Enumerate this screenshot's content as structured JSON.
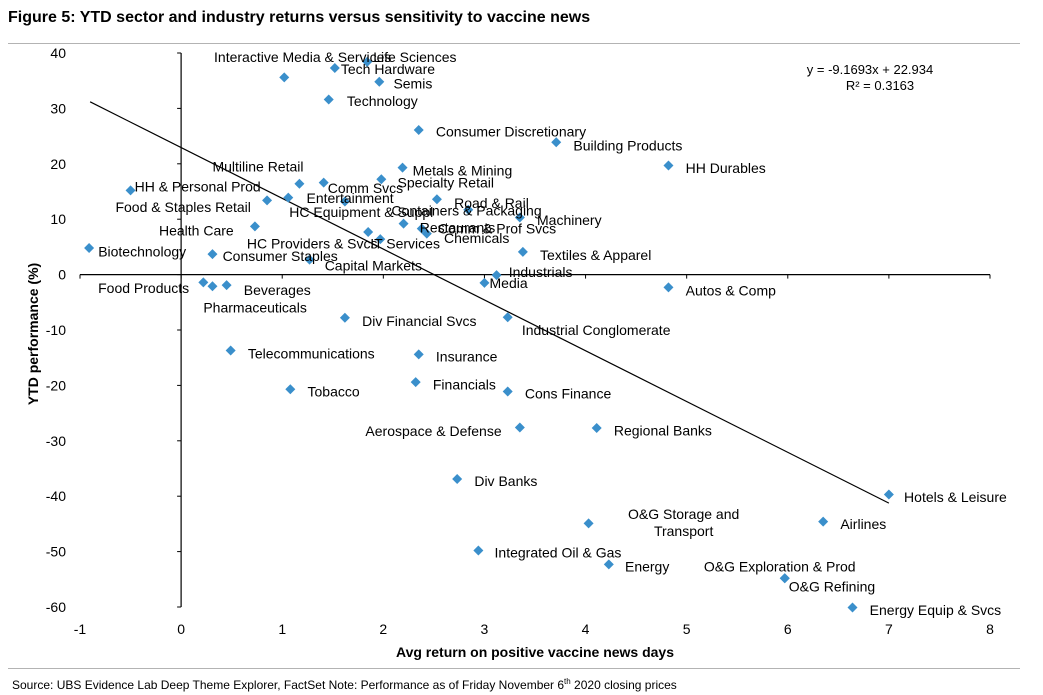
{
  "title": "Figure 5: YTD sector and industry returns versus sensitivity to vaccine news",
  "source": {
    "prefix": "Source:  UBS Evidence Lab Deep Theme Explorer, FactSet Note: Performance as of Friday November 6",
    "sup": "th",
    "suffix": " 2020 closing prices"
  },
  "chart_data": {
    "type": "scatter",
    "xlabel": "Avg return on positive vaccine news days",
    "ylabel": "YTD performance (%)",
    "xlim": [
      -1,
      8
    ],
    "ylim": [
      -60,
      40
    ],
    "xticks": [
      -1,
      0,
      1,
      2,
      3,
      4,
      5,
      6,
      7,
      8
    ],
    "yticks": [
      40,
      30,
      20,
      10,
      0,
      -10,
      -20,
      -30,
      -40,
      -50,
      -60
    ],
    "grid": false,
    "marker_color": "#3a8fcb",
    "trendline": {
      "equation": "y = -9.1693x + 22.934",
      "r2": "R² = 0.3163",
      "x_range": [
        -0.9,
        7.0
      ],
      "slope": -9.1693,
      "intercept": 22.934
    },
    "points": [
      {
        "name": "Life Sciences",
        "x": 1.84,
        "y": 38.4,
        "lx": 0.06,
        "ly": 39.3
      },
      {
        "name": "Interactive Media & Services",
        "x": 1.02,
        "y": 35.6,
        "lx": 1.06,
        "ly": 39.3,
        "anchor": "end"
      },
      {
        "name": "Tech Hardware",
        "x": 1.52,
        "y": 37.3,
        "lx": 0.06,
        "ly": 37.1
      },
      {
        "name": "Semis",
        "x": 1.96,
        "y": 34.8,
        "lx": 0.14,
        "ly": 34.5
      },
      {
        "name": "Technology",
        "x": 1.46,
        "y": 31.6,
        "lx": 0.18,
        "ly": 31.3
      },
      {
        "name": "Consumer Discretionary",
        "x": 2.35,
        "y": 26.1,
        "lx": 0.17,
        "ly": 25.8
      },
      {
        "name": "Building Products",
        "x": 3.71,
        "y": 23.9,
        "lx": 0.17,
        "ly": 23.3
      },
      {
        "name": "HH Durables",
        "x": 4.82,
        "y": 19.7,
        "lx": 0.17,
        "ly": 19.2
      },
      {
        "name": "Multiline Retail",
        "x": 1.17,
        "y": 16.4,
        "lx": -0.86,
        "ly": 19.5
      },
      {
        "name": "Metals & Mining",
        "x": 2.19,
        "y": 19.3,
        "lx": 0.1,
        "ly": 18.8
      },
      {
        "name": "HH & Personal Prod",
        "x": -0.5,
        "y": 15.2,
        "lx": 0.04,
        "ly": 15.9
      },
      {
        "name": "Comm Svcs",
        "x": 1.41,
        "y": 16.6,
        "lx": 0.04,
        "ly": 15.6
      },
      {
        "name": "Specialty Retail",
        "x": 1.98,
        "y": 17.2,
        "lx": 0.16,
        "ly": 16.6
      },
      {
        "name": "Entertainment",
        "x": 1.62,
        "y": 13.2,
        "lx": -0.38,
        "ly": 13.8
      },
      {
        "name": "Food & Staples Retail",
        "x": 0.85,
        "y": 13.4,
        "lx": -0.16,
        "ly": 12.2,
        "anchor": "end"
      },
      {
        "name": "HC Equipment & Suppl",
        "x": 1.06,
        "y": 13.9,
        "lx": 0.01,
        "ly": 11.3
      },
      {
        "name": "Road & Rail",
        "x": 2.53,
        "y": 13.6,
        "lx": 0.17,
        "ly": 12.9
      },
      {
        "name": "Containers & Packaging",
        "x": 2.84,
        "y": 11.7,
        "lx": -0.76,
        "ly": 11.6
      },
      {
        "name": "Machinery",
        "x": 3.35,
        "y": 10.3,
        "lx": 0.17,
        "ly": 9.9
      },
      {
        "name": "Restaurants",
        "x": 2.2,
        "y": 9.2,
        "lx": 0.16,
        "ly": 8.5
      },
      {
        "name": "Comm & Prof Svcs",
        "x": 2.38,
        "y": 8.3,
        "lx": 0.16,
        "ly": 8.3
      },
      {
        "name": "Chemicals",
        "x": 2.43,
        "y": 7.4,
        "lx": 0.17,
        "ly": 6.6
      },
      {
        "name": "Health Care",
        "x": 0.73,
        "y": 8.7,
        "lx": -0.21,
        "ly": 8.0,
        "anchor": "end"
      },
      {
        "name": "HC Providers & Svcs",
        "x": 1.85,
        "y": 7.7,
        "lx": -1.2,
        "ly": 5.6
      },
      {
        "name": "IT Services",
        "x": 1.97,
        "y": 6.4,
        "lx": -0.1,
        "ly": 5.6
      },
      {
        "name": "Biotechnology",
        "x": -0.91,
        "y": 4.8,
        "lx": 0.09,
        "ly": 4.2
      },
      {
        "name": "Consumer Staples",
        "x": 0.31,
        "y": 3.7,
        "lx": 0.1,
        "ly": 3.4
      },
      {
        "name": "Textiles & Apparel",
        "x": 3.38,
        "y": 4.1,
        "lx": 0.17,
        "ly": 3.5
      },
      {
        "name": "Capital Markets",
        "x": 1.27,
        "y": 2.7,
        "lx": 0.15,
        "ly": 1.6
      },
      {
        "name": "Industrials",
        "x": 3.12,
        "y": -0.1,
        "lx": 0.12,
        "ly": 0.5
      },
      {
        "name": "Media",
        "x": 3.0,
        "y": -1.5,
        "lx": 0.05,
        "ly": -1.5
      },
      {
        "name": "Food Products",
        "x": 0.22,
        "y": -1.4,
        "lx": -0.14,
        "ly": -2.4,
        "anchor": "end"
      },
      {
        "name": "Beverages",
        "x": 0.45,
        "y": -1.9,
        "lx": 0.17,
        "ly": -2.8
      },
      {
        "name": "Pharmaceuticals",
        "x": 0.31,
        "y": -2.1,
        "lx": -0.09,
        "ly": -5.9
      },
      {
        "name": "Autos & Comp",
        "x": 4.82,
        "y": -2.3,
        "lx": 0.17,
        "ly": -2.9
      },
      {
        "name": "Div Financial Svcs",
        "x": 1.62,
        "y": -7.8,
        "lx": 0.17,
        "ly": -8.4
      },
      {
        "name": "Industrial Conglomerate",
        "x": 3.23,
        "y": -7.7,
        "lx": 0.14,
        "ly": -10.0
      },
      {
        "name": "Telecommunications",
        "x": 0.49,
        "y": -13.7,
        "lx": 0.17,
        "ly": -14.2
      },
      {
        "name": "Insurance",
        "x": 2.35,
        "y": -14.4,
        "lx": 0.17,
        "ly": -14.8
      },
      {
        "name": "Financials",
        "x": 2.32,
        "y": -19.4,
        "lx": 0.17,
        "ly": -19.8
      },
      {
        "name": "Cons Finance",
        "x": 3.23,
        "y": -21.1,
        "lx": 0.17,
        "ly": -21.5
      },
      {
        "name": "Tobacco",
        "x": 1.08,
        "y": -20.7,
        "lx": 0.17,
        "ly": -21.1
      },
      {
        "name": "Aerospace & Defense",
        "x": 3.35,
        "y": -27.6,
        "lx": -0.18,
        "ly": -28.2,
        "anchor": "end"
      },
      {
        "name": "Regional Banks",
        "x": 4.11,
        "y": -27.7,
        "lx": 0.17,
        "ly": -28.1
      },
      {
        "name": "Div Banks",
        "x": 2.73,
        "y": -36.9,
        "lx": 0.17,
        "ly": -37.3
      },
      {
        "name": "Hotels & Leisure",
        "x": 7.0,
        "y": -39.7,
        "lx": 0.15,
        "ly": -40.1
      },
      {
        "name": "O&G Storage and Transport",
        "x": 4.03,
        "y": -44.9,
        "lx": 0.94,
        "ly": -43.2,
        "anchor": "middle",
        "lines": [
          "O&G Storage and",
          "Transport"
        ]
      },
      {
        "name": "Airlines",
        "x": 6.35,
        "y": -44.6,
        "lx": 0.17,
        "ly": -45.0
      },
      {
        "name": "Integrated Oil & Gas",
        "x": 2.94,
        "y": -49.8,
        "lx": 0.16,
        "ly": -50.2
      },
      {
        "name": "Energy",
        "x": 4.23,
        "y": -52.3,
        "lx": 0.16,
        "ly": -52.7
      },
      {
        "name": "O&G Exploration & Prod",
        "x": 5.97,
        "y": -54.8,
        "lx": -0.8,
        "ly": -52.7
      },
      {
        "name": "O&G Refining",
        "x": 5.97,
        "y": -54.8,
        "lx": 0.04,
        "ly": -56.3
      },
      {
        "name": "Energy Equip & Svcs",
        "x": 6.64,
        "y": -60.1,
        "lx": 0.17,
        "ly": -60.5
      }
    ]
  }
}
